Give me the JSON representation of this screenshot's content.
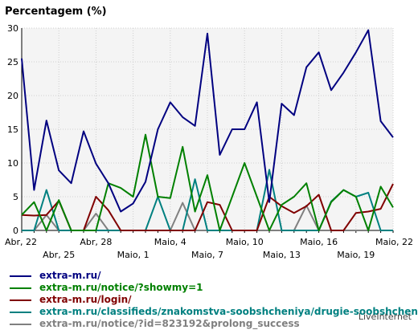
{
  "chart_data": {
    "type": "line",
    "title": "Percentagem (%)",
    "ylim": [
      0,
      30
    ],
    "yticks": [
      0,
      5,
      10,
      15,
      20,
      25,
      30
    ],
    "grid": true,
    "legend_position": "bottom",
    "x_labels_row1": [
      {
        "label": "Abr, 22",
        "x": 0
      },
      {
        "label": "Abr, 28",
        "x": 6
      },
      {
        "label": "Maio, 4",
        "x": 12
      },
      {
        "label": "Maio, 10",
        "x": 18
      },
      {
        "label": "Maio, 16",
        "x": 24
      },
      {
        "label": "Maio, 22",
        "x": 30
      }
    ],
    "x_labels_row2": [
      {
        "label": "Abr, 25",
        "x": 3
      },
      {
        "label": "Maio, 1",
        "x": 9
      },
      {
        "label": "Maio, 7",
        "x": 15
      },
      {
        "label": "Maio, 13",
        "x": 21
      },
      {
        "label": "Maio, 19",
        "x": 27
      }
    ],
    "series": [
      {
        "name": "extra-m.ru/",
        "color": "#000080",
        "values": [
          25.5,
          6,
          16.3,
          8.9,
          7,
          14.7,
          9.9,
          7,
          2.8,
          4,
          7.2,
          15,
          19,
          16.8,
          15.5,
          29.2,
          11.2,
          15,
          15,
          19,
          4.2,
          18.8,
          17.1,
          24.2,
          26.4,
          20.8,
          23.4,
          26.4,
          29.7,
          16.2,
          13.8
        ]
      },
      {
        "name": "extra-m.ru/notice/?showmy=1",
        "color": "#008000",
        "values": [
          2.3,
          4.2,
          0,
          4.5,
          0,
          0,
          0,
          7,
          6.3,
          5,
          14.2,
          5,
          4.8,
          12.4,
          2.8,
          8.2,
          0,
          5,
          10,
          5,
          0,
          3.8,
          5,
          7,
          0,
          4.2,
          6,
          5,
          0,
          6.5,
          3.4
        ]
      },
      {
        "name": "extra-m.ru/login/",
        "color": "#800000",
        "values": [
          2.3,
          2.2,
          2.3,
          4.4,
          0,
          0,
          5,
          3,
          0,
          0,
          0,
          0,
          0,
          0,
          0,
          4.2,
          3.8,
          0,
          0,
          0,
          5,
          3.6,
          2.6,
          3.6,
          5.3,
          0,
          0,
          2.6,
          2.8,
          3.2,
          6.9
        ]
      },
      {
        "name": "extra-m.ru/classifieds/znakomstva-soobshcheniya/drugie-soobshcheniya/",
        "color": "#008080",
        "values": [
          0,
          0,
          6,
          0,
          0,
          0,
          0,
          0,
          0,
          0,
          0,
          5,
          0,
          0,
          7.6,
          0,
          0,
          0,
          0,
          0,
          9,
          0,
          0,
          0,
          0,
          4.3,
          6,
          5,
          5.6,
          0,
          0
        ]
      },
      {
        "name": "extra-m.ru/notice/?id=823192&prolong_success",
        "color": "#808080",
        "values": [
          0,
          0,
          2.3,
          0,
          0,
          0,
          2.5,
          0,
          0,
          0,
          0,
          0,
          0,
          4.1,
          0,
          0,
          0,
          0,
          0,
          0,
          0,
          0,
          0,
          3.7,
          0,
          0,
          0,
          0,
          0,
          0,
          0
        ]
      }
    ]
  },
  "credit": "LiveInternet"
}
